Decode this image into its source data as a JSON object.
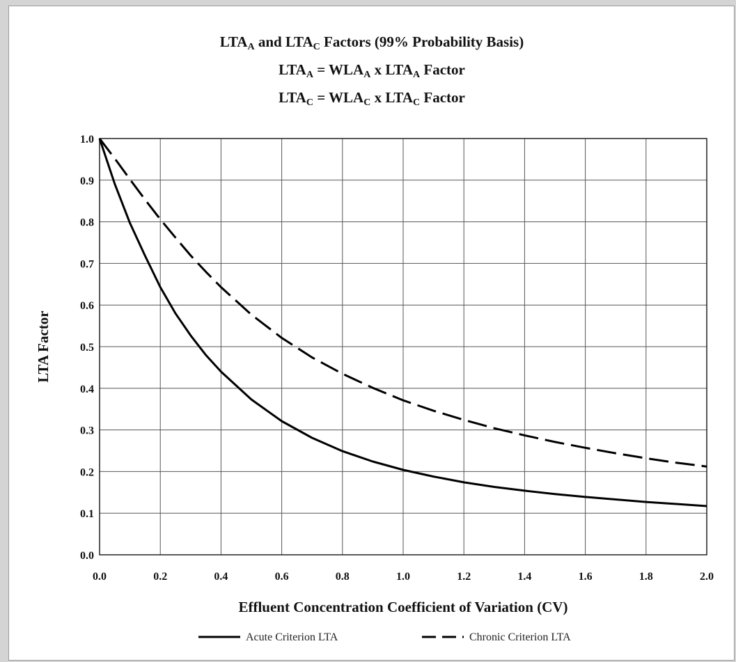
{
  "chart_data": {
    "type": "line",
    "title_lines": [
      {
        "parts": [
          {
            "t": "LTA"
          },
          {
            "t": "A",
            "sub": true
          },
          {
            "t": " and LTA"
          },
          {
            "t": "C",
            "sub": true
          },
          {
            "t": " Factors (99% Probability Basis)"
          }
        ]
      },
      {
        "parts": [
          {
            "t": "LTA"
          },
          {
            "t": "A",
            "sub": true
          },
          {
            "t": " = WLA"
          },
          {
            "t": "A",
            "sub": true
          },
          {
            "t": " x LTA"
          },
          {
            "t": "A",
            "sub": true
          },
          {
            "t": " Factor"
          }
        ]
      },
      {
        "parts": [
          {
            "t": "LTA"
          },
          {
            "t": "C",
            "sub": true
          },
          {
            "t": " = WLA"
          },
          {
            "t": "C",
            "sub": true
          },
          {
            "t": " x LTA"
          },
          {
            "t": "C",
            "sub": true
          },
          {
            "t": " Factor"
          }
        ]
      }
    ],
    "xlabel": "Effluent Concentration Coefficient of Variation (CV)",
    "ylabel": "LTA Factor",
    "xlim": [
      0.0,
      2.0
    ],
    "ylim": [
      0.0,
      1.0
    ],
    "x_ticks": [
      "0.0",
      "0.2",
      "0.4",
      "0.6",
      "0.8",
      "1.0",
      "1.2",
      "1.4",
      "1.6",
      "1.8",
      "2.0"
    ],
    "y_ticks": [
      "0.0",
      "0.1",
      "0.2",
      "0.3",
      "0.4",
      "0.5",
      "0.6",
      "0.7",
      "0.8",
      "0.9",
      "1.0"
    ],
    "grid": true,
    "legend_position": "bottom",
    "series": [
      {
        "name": "Acute Criterion LTA",
        "style": "solid",
        "x": [
          0.0,
          0.05,
          0.1,
          0.15,
          0.2,
          0.25,
          0.3,
          0.35,
          0.4,
          0.5,
          0.6,
          0.7,
          0.8,
          0.9,
          1.0,
          1.1,
          1.2,
          1.3,
          1.4,
          1.5,
          1.6,
          1.7,
          1.8,
          1.9,
          2.0
        ],
        "y": [
          1.0,
          0.891,
          0.797,
          0.718,
          0.643,
          0.58,
          0.527,
          0.48,
          0.44,
          0.373,
          0.321,
          0.281,
          0.249,
          0.224,
          0.204,
          0.188,
          0.174,
          0.163,
          0.154,
          0.146,
          0.139,
          0.133,
          0.127,
          0.122,
          0.117
        ]
      },
      {
        "name": "Chronic Criterion LTA",
        "style": "dashed",
        "x": [
          0.0,
          0.05,
          0.1,
          0.15,
          0.2,
          0.25,
          0.3,
          0.35,
          0.4,
          0.5,
          0.6,
          0.7,
          0.8,
          0.9,
          1.0,
          1.1,
          1.2,
          1.3,
          1.4,
          1.5,
          1.6,
          1.7,
          1.8,
          1.9,
          2.0
        ],
        "y": [
          1.0,
          0.952,
          0.902,
          0.853,
          0.806,
          0.762,
          0.719,
          0.68,
          0.643,
          0.577,
          0.521,
          0.474,
          0.435,
          0.401,
          0.371,
          0.346,
          0.324,
          0.304,
          0.287,
          0.271,
          0.257,
          0.244,
          0.232,
          0.221,
          0.212
        ]
      }
    ],
    "colors": {
      "line": "#000000",
      "grid": "#555555",
      "background": "#ffffff"
    }
  }
}
